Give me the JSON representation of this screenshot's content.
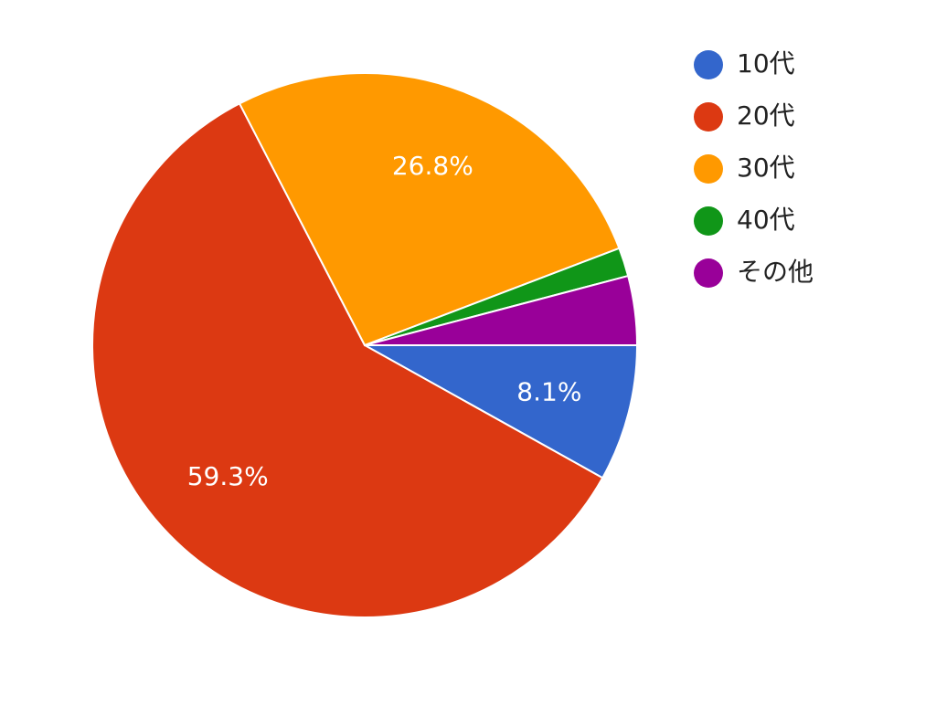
{
  "chart_data": {
    "type": "pie",
    "categories": [
      "10代",
      "20代",
      "30代",
      "40代",
      "その他"
    ],
    "values": [
      8.1,
      59.3,
      26.8,
      1.7,
      4.1
    ],
    "value_labels": [
      "8.1%",
      "59.3%",
      "26.8%",
      null,
      null
    ],
    "colors": [
      "#3366cc",
      "#dc3912",
      "#ff9900",
      "#109618",
      "#990099"
    ],
    "legend": "right"
  }
}
